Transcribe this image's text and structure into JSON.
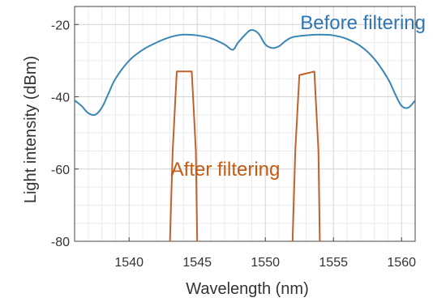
{
  "chart_data": {
    "type": "line",
    "xlabel": "Wavelength (nm)",
    "ylabel": "Light intensity (dBm)",
    "xlim": [
      1536,
      1561
    ],
    "ylim": [
      -80,
      -15
    ],
    "xticks": [
      1540,
      1545,
      1550,
      1555,
      1560
    ],
    "yticks": [
      -80,
      -60,
      -40,
      -20
    ],
    "xtick_labels": [
      "1540",
      "1545",
      "1550",
      "1555",
      "1560"
    ],
    "ytick_labels": [
      "-80",
      "-60",
      "-40",
      "-20"
    ],
    "grid": true,
    "minor_grid": true,
    "series": [
      {
        "name": "Before filtering",
        "color": "#3a86b5",
        "x": [
          1536,
          1536.5,
          1537,
          1537.5,
          1538,
          1538.5,
          1539,
          1540,
          1541,
          1542,
          1543,
          1544,
          1545,
          1546,
          1547,
          1547.6,
          1548,
          1548.6,
          1549,
          1549.5,
          1550,
          1550.5,
          1551,
          1551.5,
          1552,
          1553,
          1554,
          1555,
          1556,
          1557,
          1558,
          1559,
          1559.5,
          1560,
          1560.5,
          1561
        ],
        "y": [
          -41,
          -42.5,
          -44.5,
          -45,
          -43,
          -39,
          -35,
          -30,
          -27,
          -25,
          -23.5,
          -22.8,
          -23,
          -23.8,
          -25.5,
          -27,
          -25,
          -22.5,
          -21.5,
          -22.5,
          -25.5,
          -26.5,
          -26,
          -24.5,
          -23.5,
          -23,
          -22.8,
          -23,
          -24,
          -26,
          -29.5,
          -35,
          -39,
          -42.5,
          -43,
          -41
        ]
      },
      {
        "name": "After filtering",
        "color": "#c1622c",
        "x": [
          1543,
          1543.2,
          1543.5,
          1544.6,
          1544.9,
          1545,
          1552,
          1552.2,
          1552.5,
          1553.6,
          1553.9,
          1554
        ],
        "y": [
          -80,
          -55,
          -33,
          -33,
          -55,
          -80,
          -80,
          -55,
          -34,
          -33,
          -55,
          -80
        ]
      }
    ]
  },
  "annotations": {
    "before": "Before filtering",
    "after": "After filtering"
  }
}
